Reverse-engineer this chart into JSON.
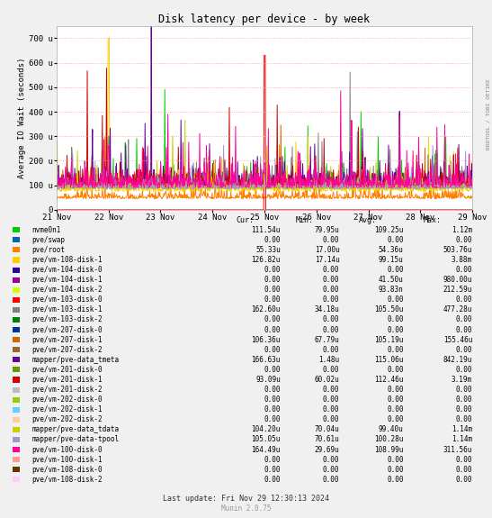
{
  "title": "Disk latency per device - by week",
  "ylabel": "Average IO Wait (seconds)",
  "background_color": "#F0F0F0",
  "plot_bg_color": "#FFFFFF",
  "grid_color": "#FF9999",
  "x_ticks_labels": [
    "21 Nov",
    "22 Nov",
    "23 Nov",
    "24 Nov",
    "25 Nov",
    "26 Nov",
    "27 Nov",
    "28 Nov",
    "29 Nov"
  ],
  "y_ticks": [
    0,
    100,
    200,
    300,
    400,
    500,
    600,
    700
  ],
  "y_tick_labels": [
    "0",
    "100 u",
    "200 u",
    "300 u",
    "400 u",
    "500 u",
    "600 u",
    "700 u"
  ],
  "y_max": 750,
  "legend_items": [
    {
      "label": "nvme0n1",
      "color": "#00CC00",
      "cur": "111.54u",
      "min": "79.95u",
      "avg": "109.25u",
      "max": "1.12m"
    },
    {
      "label": "pve/swap",
      "color": "#0066B3",
      "cur": "0.00",
      "min": "0.00",
      "avg": "0.00",
      "max": "0.00"
    },
    {
      "label": "pve/root",
      "color": "#FF7F00",
      "cur": "55.33u",
      "min": "17.00u",
      "avg": "54.36u",
      "max": "503.76u"
    },
    {
      "label": "pve/vm-108-disk-1",
      "color": "#FFCC00",
      "cur": "126.82u",
      "min": "17.14u",
      "avg": "99.15u",
      "max": "3.88m"
    },
    {
      "label": "pve/vm-104-disk-0",
      "color": "#330099",
      "cur": "0.00",
      "min": "0.00",
      "avg": "0.00",
      "max": "0.00"
    },
    {
      "label": "pve/vm-104-disk-1",
      "color": "#990099",
      "cur": "0.00",
      "min": "0.00",
      "avg": "41.50u",
      "max": "980.00u"
    },
    {
      "label": "pve/vm-104-disk-2",
      "color": "#CCFF00",
      "cur": "0.00",
      "min": "0.00",
      "avg": "93.83n",
      "max": "212.59u"
    },
    {
      "label": "pve/vm-103-disk-0",
      "color": "#FF0000",
      "cur": "0.00",
      "min": "0.00",
      "avg": "0.00",
      "max": "0.00"
    },
    {
      "label": "pve/vm-103-disk-1",
      "color": "#808080",
      "cur": "162.60u",
      "min": "34.18u",
      "avg": "105.50u",
      "max": "477.28u"
    },
    {
      "label": "pve/vm-103-disk-2",
      "color": "#008000",
      "cur": "0.00",
      "min": "0.00",
      "avg": "0.00",
      "max": "0.00"
    },
    {
      "label": "pve/vm-207-disk-0",
      "color": "#003399",
      "cur": "0.00",
      "min": "0.00",
      "avg": "0.00",
      "max": "0.00"
    },
    {
      "label": "pve/vm-207-disk-1",
      "color": "#CC6600",
      "cur": "106.36u",
      "min": "67.79u",
      "avg": "105.19u",
      "max": "155.46u"
    },
    {
      "label": "pve/vm-207-disk-2",
      "color": "#996633",
      "cur": "0.00",
      "min": "0.00",
      "avg": "0.00",
      "max": "0.00"
    },
    {
      "label": "mapper/pve-data_tmeta",
      "color": "#660099",
      "cur": "166.63u",
      "min": "1.48u",
      "avg": "115.06u",
      "max": "842.19u"
    },
    {
      "label": "pve/vm-201-disk-0",
      "color": "#669900",
      "cur": "0.00",
      "min": "0.00",
      "avg": "0.00",
      "max": "0.00"
    },
    {
      "label": "pve/vm-201-disk-1",
      "color": "#CC0000",
      "cur": "93.09u",
      "min": "60.02u",
      "avg": "112.46u",
      "max": "3.19m"
    },
    {
      "label": "pve/vm-201-disk-2",
      "color": "#BBBBBB",
      "cur": "0.00",
      "min": "0.00",
      "avg": "0.00",
      "max": "0.00"
    },
    {
      "label": "pve/vm-202-disk-0",
      "color": "#99CC00",
      "cur": "0.00",
      "min": "0.00",
      "avg": "0.00",
      "max": "0.00"
    },
    {
      "label": "pve/vm-202-disk-1",
      "color": "#66CCFF",
      "cur": "0.00",
      "min": "0.00",
      "avg": "0.00",
      "max": "0.00"
    },
    {
      "label": "pve/vm-202-disk-2",
      "color": "#FFCC99",
      "cur": "0.00",
      "min": "0.00",
      "avg": "0.00",
      "max": "0.00"
    },
    {
      "label": "mapper/pve-data_tdata",
      "color": "#CCCC00",
      "cur": "104.20u",
      "min": "70.04u",
      "avg": "99.40u",
      "max": "1.14m"
    },
    {
      "label": "mapper/pve-data-tpool",
      "color": "#9999CC",
      "cur": "105.05u",
      "min": "70.61u",
      "avg": "100.28u",
      "max": "1.14m"
    },
    {
      "label": "pve/vm-100-disk-0",
      "color": "#FF0099",
      "cur": "164.49u",
      "min": "29.69u",
      "avg": "108.99u",
      "max": "311.56u"
    },
    {
      "label": "pve/vm-100-disk-1",
      "color": "#FF9999",
      "cur": "0.00",
      "min": "0.00",
      "avg": "0.00",
      "max": "0.00"
    },
    {
      "label": "pve/vm-108-disk-0",
      "color": "#663300",
      "cur": "0.00",
      "min": "0.00",
      "avg": "0.00",
      "max": "0.00"
    },
    {
      "label": "pve/vm-108-disk-2",
      "color": "#FFCCFF",
      "cur": "0.00",
      "min": "0.00",
      "avg": "0.00",
      "max": "0.00"
    }
  ],
  "right_label": "RRDTOOL / TOBI OETIKE",
  "last_update": "Last update: Fri Nov 29 12:30:13 2024",
  "munin_version": "Munin 2.0.75"
}
